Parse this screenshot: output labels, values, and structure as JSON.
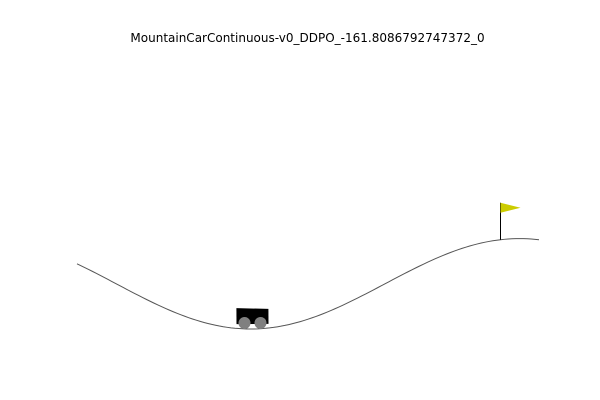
{
  "episode": {
    "title": "MountainCarContinuous-v0_DDPO_-161.8086792747372_0"
  },
  "environment": {
    "name": "MountainCarContinuous-v0",
    "position_range": [
      -1.2,
      0.6
    ],
    "goal_position": 0.45,
    "car_position": -0.52
  },
  "colors": {
    "background": "#ffffff",
    "track": "#555555",
    "car_body": "#000000",
    "wheel": "#808080",
    "flag": "#cccc00",
    "flagpole": "#000000",
    "title_text": "#000000"
  }
}
